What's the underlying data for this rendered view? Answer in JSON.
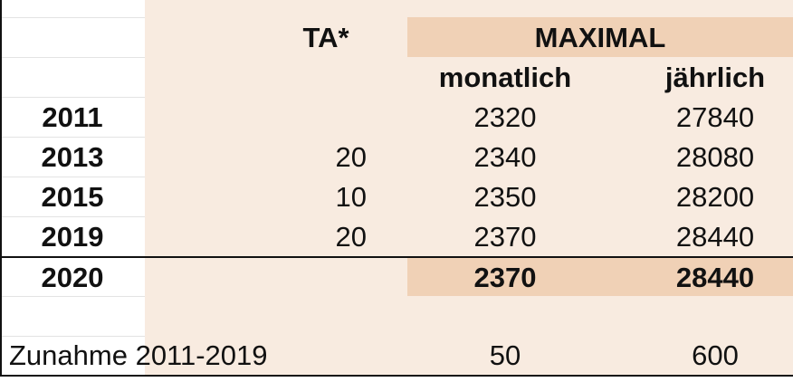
{
  "header": {
    "ta": "TA*",
    "maximal": "MAXIMAL",
    "monatlich": "monatlich",
    "jaehrlich": "jährlich"
  },
  "rows": [
    {
      "year": "2011",
      "ta": "",
      "monatlich": "2320",
      "jaehrlich": "27840"
    },
    {
      "year": "2013",
      "ta": "20",
      "monatlich": "2340",
      "jaehrlich": "28080"
    },
    {
      "year": "2015",
      "ta": "10",
      "monatlich": "2350",
      "jaehrlich": "28200"
    },
    {
      "year": "2019",
      "ta": "20",
      "monatlich": "2370",
      "jaehrlich": "28440"
    }
  ],
  "total_row": {
    "year": "2020",
    "monatlich": "2370",
    "jaehrlich": "28440"
  },
  "summary_row": {
    "label": "Zunahme 2011-2019",
    "monatlich": "50",
    "jaehrlich": "600"
  },
  "colors": {
    "tint": "#f8ebe0",
    "band": "#f0d1b6"
  }
}
